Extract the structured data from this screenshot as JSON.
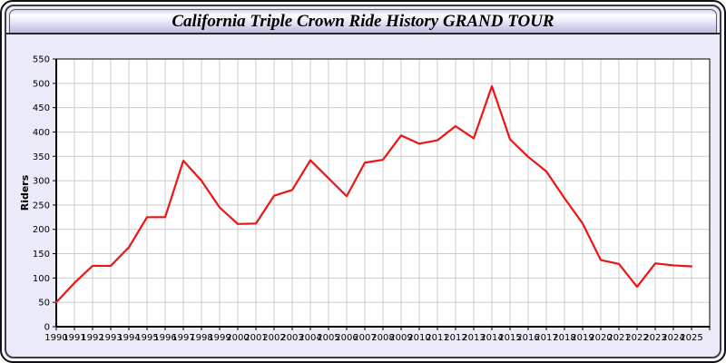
{
  "window": {
    "title": "California Triple Crown Ride History GRAND TOUR"
  },
  "colors": {
    "page_bg": "#eaeaf8",
    "frame_border": "#111111",
    "plot_bg": "#ffffff",
    "gridline": "#cccccc",
    "axis": "#000000",
    "series_line": "#ee1414",
    "label_text": "#000000"
  },
  "chart_data": {
    "type": "line",
    "title": "California Triple Crown Ride History GRAND TOUR",
    "xlabel": "",
    "ylabel": "Riders",
    "x": [
      1990,
      1991,
      1992,
      1993,
      1994,
      1995,
      1996,
      1997,
      1998,
      1999,
      2000,
      2001,
      2002,
      2003,
      2004,
      2005,
      2006,
      2007,
      2008,
      2009,
      2010,
      2011,
      2012,
      2013,
      2014,
      2015,
      2016,
      2017,
      2018,
      2019,
      2020,
      2021,
      2022,
      2023,
      2024,
      2025
    ],
    "series": [
      {
        "name": "Riders",
        "color": "#ee1414",
        "values": [
          50,
          90,
          125,
          125,
          163,
          225,
          225,
          341,
          300,
          245,
          211,
          212,
          269,
          281,
          342,
          305,
          268,
          337,
          343,
          393,
          376,
          383,
          412,
          387,
          494,
          385,
          349,
          319,
          264,
          212,
          137,
          129,
          82,
          130,
          126,
          124
        ]
      }
    ],
    "ylim": [
      0,
      550
    ],
    "ytick_step": 50,
    "xlim": [
      1990,
      2026
    ],
    "grid": true,
    "legend": "none"
  }
}
